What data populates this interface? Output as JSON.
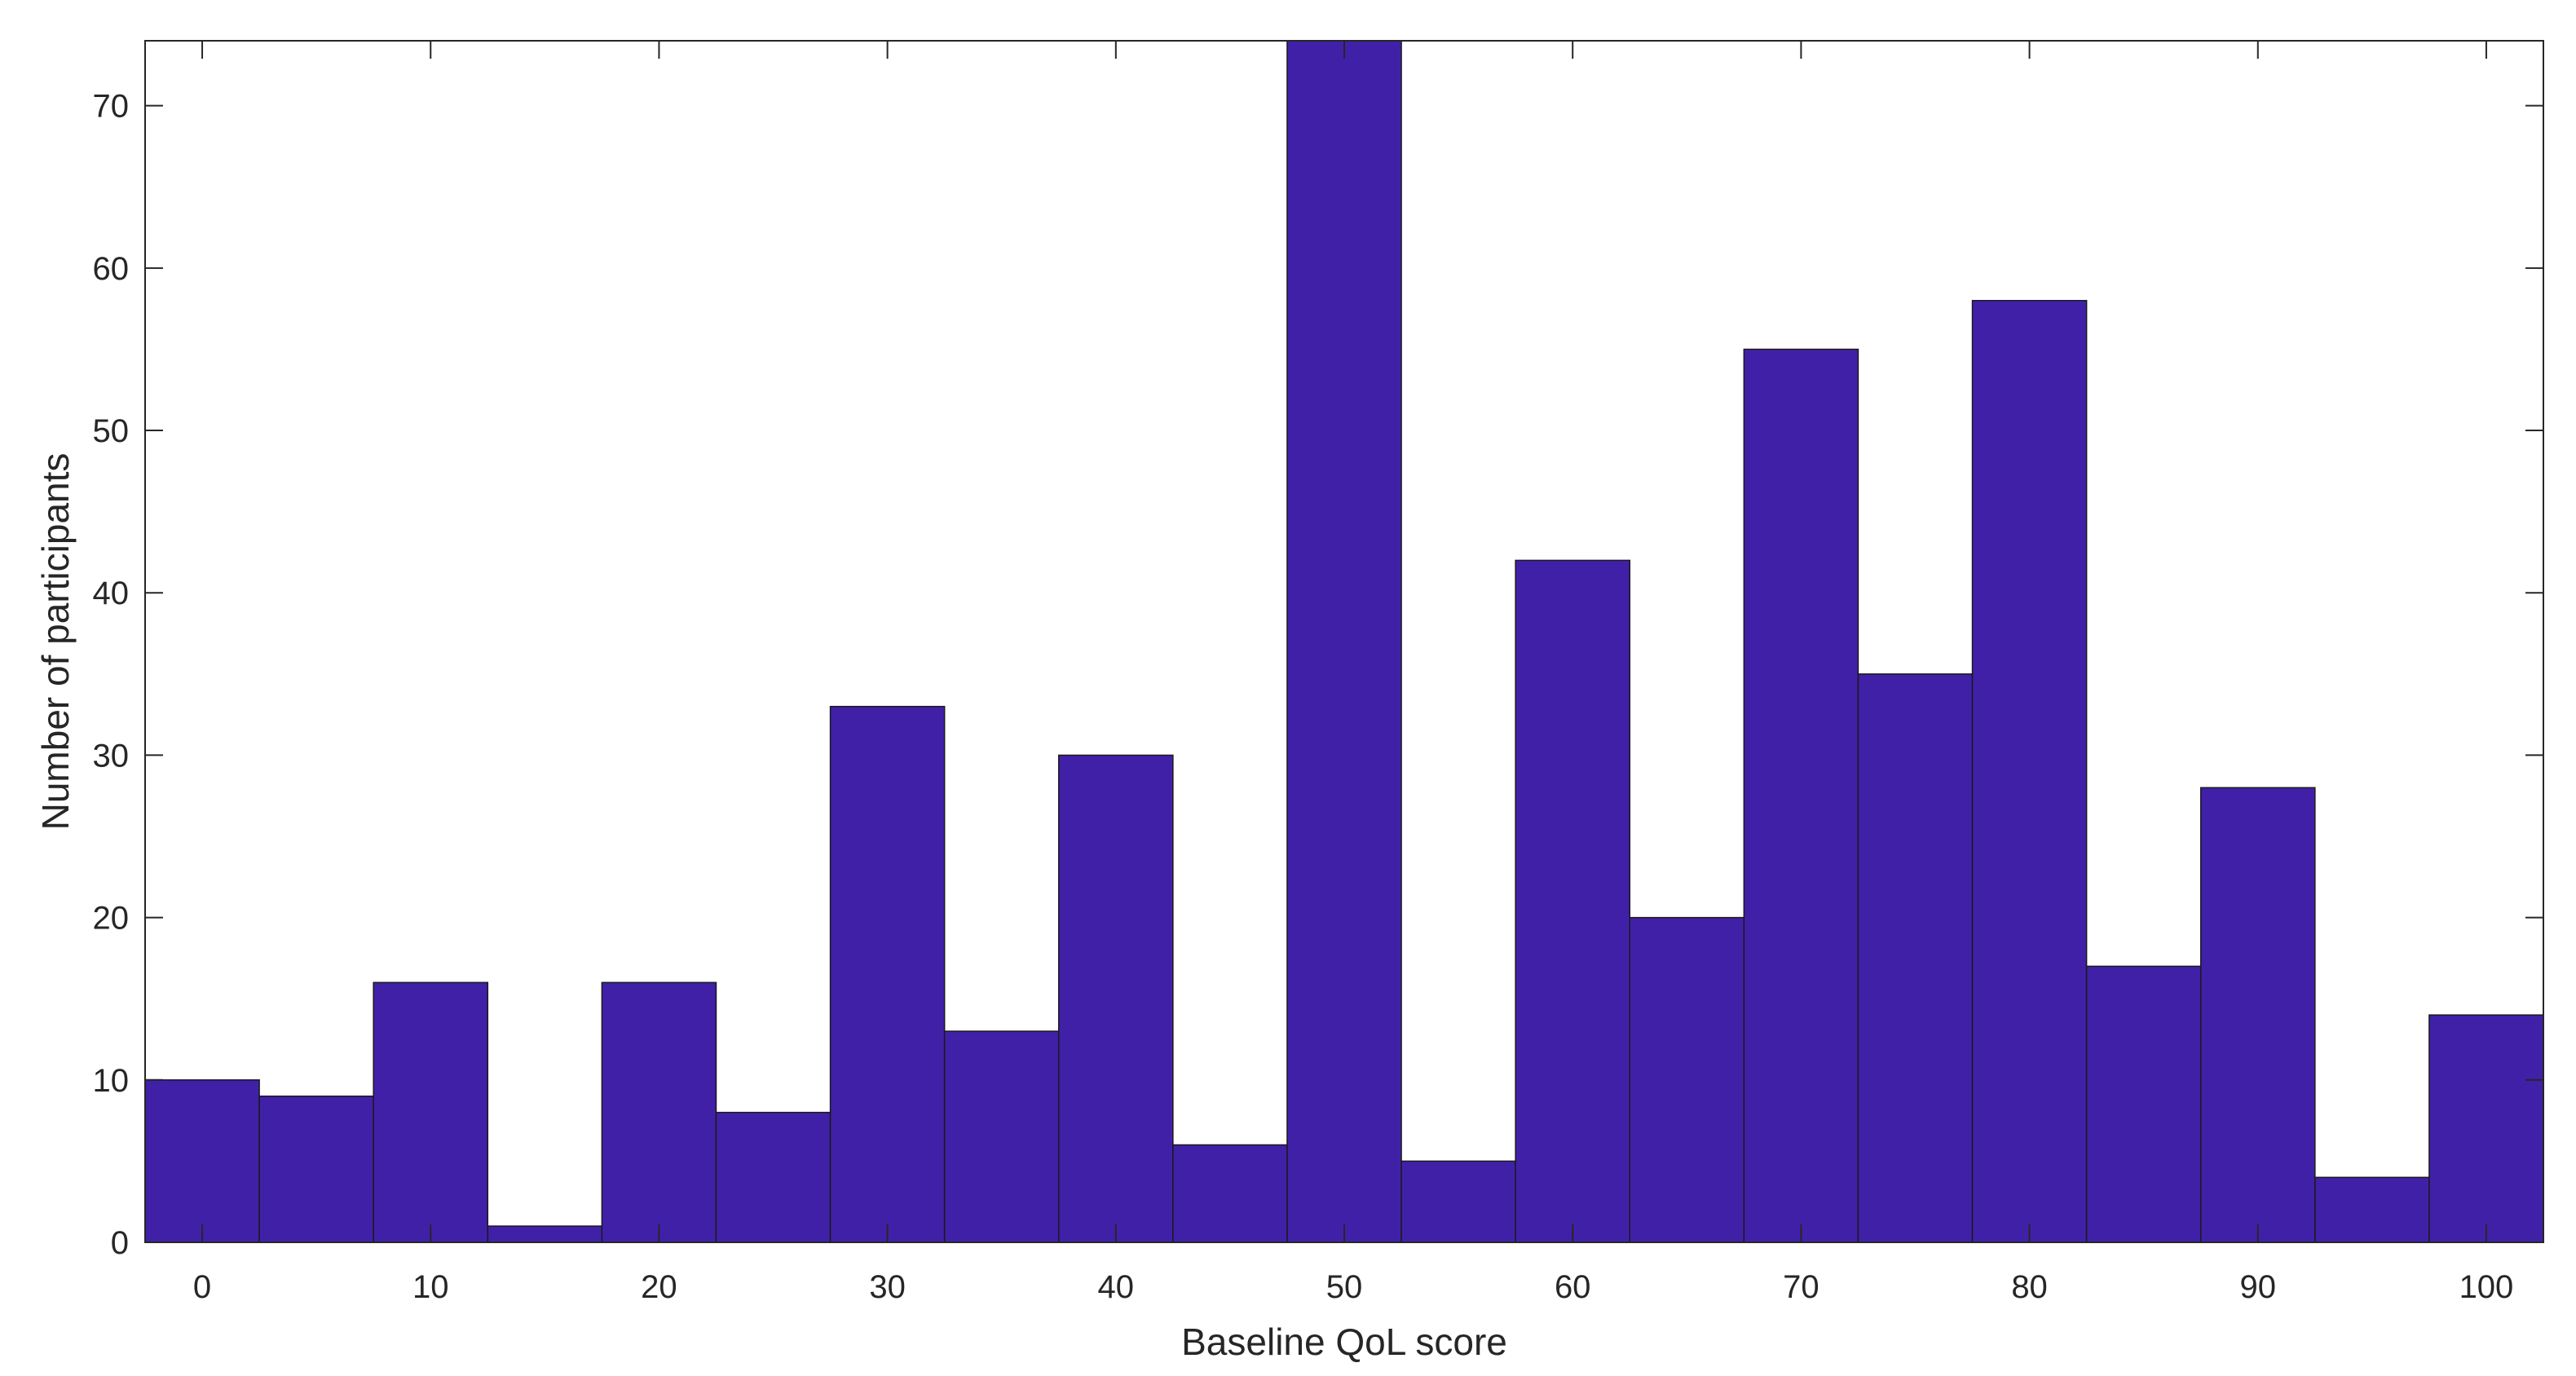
{
  "chart_data": {
    "type": "bar",
    "chart_kind": "histogram",
    "title": "",
    "xlabel": "Baseline QoL score",
    "ylabel": "Number of participants",
    "bin_width": 5,
    "bin_centers": [
      0,
      5,
      10,
      15,
      20,
      25,
      30,
      35,
      40,
      45,
      50,
      55,
      60,
      65,
      70,
      75,
      80,
      85,
      90,
      95,
      100
    ],
    "values": [
      10,
      9,
      16,
      1,
      16,
      8,
      33,
      13,
      30,
      6,
      74,
      5,
      42,
      20,
      55,
      35,
      58,
      17,
      28,
      4,
      14
    ],
    "xlim": [
      -2.5,
      102.5
    ],
    "ylim": [
      0,
      74
    ],
    "xticks": [
      0,
      10,
      20,
      30,
      40,
      50,
      60,
      70,
      80,
      90,
      100
    ],
    "xtick_labels": [
      "0",
      "10",
      "20",
      "30",
      "40",
      "50",
      "60",
      "70",
      "80",
      "90",
      "100"
    ],
    "yticks": [
      0,
      10,
      20,
      30,
      40,
      50,
      60,
      70
    ],
    "ytick_labels": [
      "0",
      "10",
      "20",
      "30",
      "40",
      "50",
      "60",
      "70"
    ],
    "grid": false,
    "legend": "none",
    "bar_color": "#4120a8",
    "edge_color": "#1a1a1a",
    "axis_color": "#262626"
  }
}
